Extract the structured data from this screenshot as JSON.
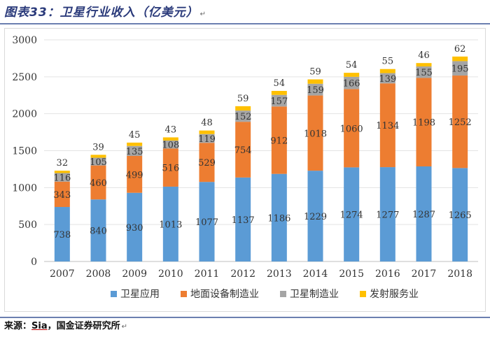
{
  "caption": {
    "text": "图表33：卫星行业收入（亿美元）",
    "mark": "↵"
  },
  "source": {
    "label": "来源：",
    "sia": "Sia",
    "rest": "，国金证券研究所",
    "mark": "↵"
  },
  "chart_data": {
    "type": "bar",
    "stacked": true,
    "title": "",
    "xlabel": "",
    "ylabel": "",
    "ylim": [
      0,
      3000
    ],
    "yticks": [
      0,
      500,
      1000,
      1500,
      2000,
      2500,
      3000
    ],
    "grid": true,
    "legend_position": "bottom",
    "categories": [
      "2007",
      "2008",
      "2009",
      "2010",
      "2011",
      "2012",
      "2013",
      "2014",
      "2015",
      "2016",
      "2017",
      "2018"
    ],
    "series": [
      {
        "name": "卫星应用",
        "color": "#5b9bd5",
        "values": [
          738,
          840,
          930,
          1013,
          1077,
          1137,
          1186,
          1229,
          1274,
          1277,
          1287,
          1265
        ]
      },
      {
        "name": "地面设备制造业",
        "color": "#ed7d31",
        "values": [
          343,
          460,
          499,
          516,
          529,
          754,
          912,
          1018,
          1060,
          1134,
          1198,
          1252
        ]
      },
      {
        "name": "卫星制造业",
        "color": "#a5a5a5",
        "values": [
          116,
          105,
          135,
          108,
          119,
          152,
          157,
          159,
          166,
          139,
          155,
          195
        ]
      },
      {
        "name": "发射服务业",
        "color": "#ffc000",
        "values": [
          32,
          39,
          45,
          43,
          48,
          59,
          54,
          59,
          54,
          55,
          46,
          62
        ]
      }
    ]
  }
}
